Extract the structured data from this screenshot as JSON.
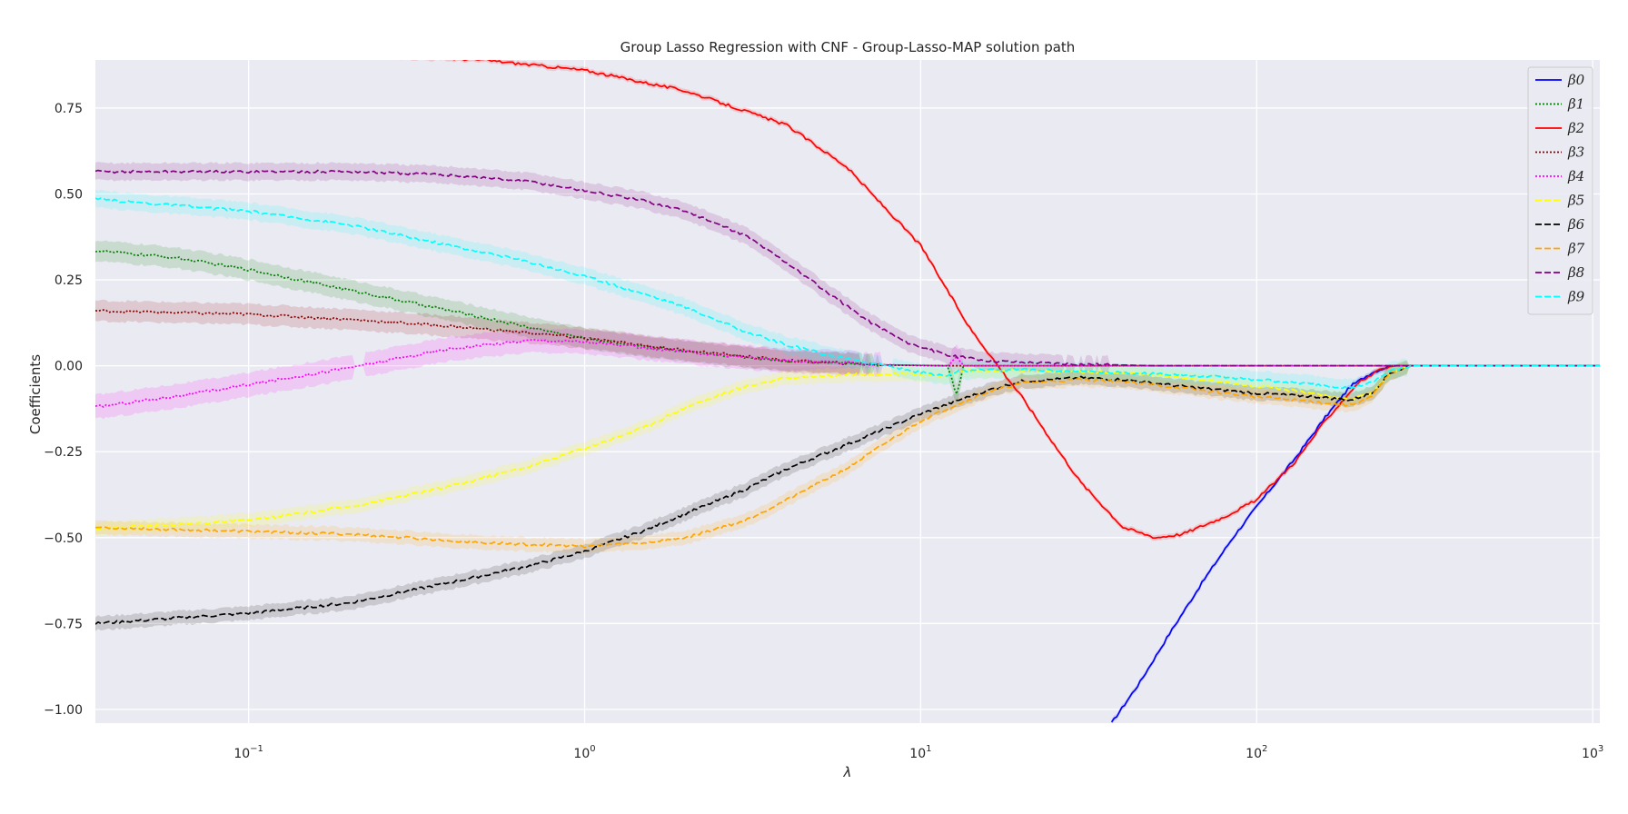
{
  "chart_data": {
    "type": "line",
    "title": "Group Lasso Regression with CNF - Group-Lasso-MAP solution path",
    "xlabel": "λ",
    "ylabel": "Coefficients",
    "xscale": "log",
    "xlim": [
      0.035,
      1050
    ],
    "ylim": [
      -1.04,
      0.89
    ],
    "grid": true,
    "legend_position": "top-right",
    "x_ticks": [
      {
        "value": 0.1,
        "base": "10",
        "exp": "−1"
      },
      {
        "value": 1,
        "base": "10",
        "exp": "0"
      },
      {
        "value": 10,
        "base": "10",
        "exp": "1"
      },
      {
        "value": 100,
        "base": "10",
        "exp": "2"
      },
      {
        "value": 1000,
        "base": "10",
        "exp": "3"
      }
    ],
    "y_ticks": [
      {
        "value": 0.75,
        "label": "0.75"
      },
      {
        "value": 0.5,
        "label": "0.50"
      },
      {
        "value": 0.25,
        "label": "0.25"
      },
      {
        "value": 0.0,
        "label": "0.00"
      },
      {
        "value": -0.25,
        "label": "−0.25"
      },
      {
        "value": -0.5,
        "label": "−0.50"
      },
      {
        "value": -0.75,
        "label": "−0.75"
      },
      {
        "value": -1.0,
        "label": "−1.00"
      }
    ],
    "series": [
      {
        "name": "β0",
        "color": "#0000ff",
        "dash": "solid",
        "band": 0.008,
        "points": [
          [
            37,
            -1.04
          ],
          [
            45,
            -0.92
          ],
          [
            55,
            -0.78
          ],
          [
            70,
            -0.62
          ],
          [
            85,
            -0.5
          ],
          [
            100,
            -0.41
          ],
          [
            130,
            -0.27
          ],
          [
            160,
            -0.15
          ],
          [
            190,
            -0.06
          ],
          [
            220,
            -0.02
          ],
          [
            250,
            0
          ],
          [
            1050,
            0
          ]
        ]
      },
      {
        "name": "β1",
        "color": "#008000",
        "dash": "dotted",
        "band": 0.03,
        "points": [
          [
            0.035,
            0.335
          ],
          [
            0.06,
            0.315
          ],
          [
            0.1,
            0.28
          ],
          [
            0.2,
            0.22
          ],
          [
            0.4,
            0.16
          ],
          [
            0.7,
            0.11
          ],
          [
            1,
            0.08
          ],
          [
            2,
            0.04
          ],
          [
            4,
            0.015
          ],
          [
            8,
            0.002
          ],
          [
            12,
            0
          ],
          [
            12.8,
            -0.085
          ],
          [
            13.4,
            0
          ],
          [
            1050,
            0
          ]
        ]
      },
      {
        "name": "β2",
        "color": "#ff0000",
        "dash": "solid",
        "band": 0.008,
        "points": [
          [
            0.035,
            0.95
          ],
          [
            0.3,
            0.9
          ],
          [
            0.5,
            0.89
          ],
          [
            1,
            0.86
          ],
          [
            2,
            0.8
          ],
          [
            4,
            0.7
          ],
          [
            6,
            0.58
          ],
          [
            8,
            0.45
          ],
          [
            10,
            0.35
          ],
          [
            12,
            0.22
          ],
          [
            14,
            0.11
          ],
          [
            17,
            0
          ],
          [
            20,
            -0.09
          ],
          [
            25,
            -0.23
          ],
          [
            30,
            -0.34
          ],
          [
            40,
            -0.47
          ],
          [
            50,
            -0.5
          ],
          [
            60,
            -0.49
          ],
          [
            80,
            -0.44
          ],
          [
            100,
            -0.39
          ],
          [
            130,
            -0.28
          ],
          [
            160,
            -0.16
          ],
          [
            200,
            -0.05
          ],
          [
            240,
            -0.005
          ],
          [
            260,
            0
          ],
          [
            1050,
            0
          ]
        ]
      },
      {
        "name": "β3",
        "color": "#8b0000",
        "dash": "dotted",
        "band": 0.03,
        "points": [
          [
            0.035,
            0.16
          ],
          [
            0.1,
            0.15
          ],
          [
            0.2,
            0.135
          ],
          [
            0.4,
            0.115
          ],
          [
            0.7,
            0.095
          ],
          [
            1,
            0.08
          ],
          [
            2,
            0.045
          ],
          [
            4,
            0.015
          ],
          [
            8,
            0.002
          ],
          [
            12,
            0
          ],
          [
            1050,
            0
          ]
        ]
      },
      {
        "name": "β4",
        "color": "#ff00ff",
        "dash": "dotted",
        "band": 0.035,
        "points": [
          [
            0.035,
            -0.12
          ],
          [
            0.07,
            -0.08
          ],
          [
            0.1,
            -0.055
          ],
          [
            0.2,
            -0.005
          ],
          [
            0.4,
            0.05
          ],
          [
            0.7,
            0.075
          ],
          [
            1,
            0.07
          ],
          [
            2,
            0.04
          ],
          [
            4,
            0.015
          ],
          [
            8,
            0.003
          ],
          [
            12,
            0
          ],
          [
            12.8,
            0.025
          ],
          [
            13.4,
            0
          ],
          [
            1050,
            0
          ]
        ]
      },
      {
        "name": "β5",
        "color": "#ffff00",
        "dash": "dashed",
        "band": 0.02,
        "points": [
          [
            0.035,
            -0.475
          ],
          [
            0.1,
            -0.45
          ],
          [
            0.2,
            -0.41
          ],
          [
            0.4,
            -0.35
          ],
          [
            0.7,
            -0.29
          ],
          [
            1,
            -0.24
          ],
          [
            1.5,
            -0.18
          ],
          [
            2,
            -0.12
          ],
          [
            3,
            -0.06
          ],
          [
            4,
            -0.035
          ],
          [
            6,
            -0.025
          ],
          [
            10,
            -0.025
          ],
          [
            12,
            -0.03
          ],
          [
            13,
            -0.015
          ],
          [
            20,
            -0.015
          ],
          [
            40,
            -0.02
          ],
          [
            70,
            -0.04
          ],
          [
            100,
            -0.06
          ],
          [
            150,
            -0.08
          ],
          [
            190,
            -0.1
          ],
          [
            220,
            -0.08
          ],
          [
            250,
            -0.02
          ],
          [
            290,
            0
          ],
          [
            1050,
            0
          ]
        ]
      },
      {
        "name": "β6",
        "color": "#000000",
        "dash": "dashed",
        "band": 0.02,
        "points": [
          [
            0.035,
            -0.75
          ],
          [
            0.1,
            -0.72
          ],
          [
            0.2,
            -0.69
          ],
          [
            0.4,
            -0.63
          ],
          [
            0.7,
            -0.58
          ],
          [
            1,
            -0.54
          ],
          [
            1.5,
            -0.48
          ],
          [
            2,
            -0.43
          ],
          [
            3,
            -0.36
          ],
          [
            4,
            -0.3
          ],
          [
            6,
            -0.23
          ],
          [
            8,
            -0.18
          ],
          [
            10,
            -0.14
          ],
          [
            13,
            -0.1
          ],
          [
            16,
            -0.07
          ],
          [
            20,
            -0.045
          ],
          [
            30,
            -0.035
          ],
          [
            40,
            -0.04
          ],
          [
            60,
            -0.06
          ],
          [
            100,
            -0.08
          ],
          [
            150,
            -0.09
          ],
          [
            190,
            -0.1
          ],
          [
            220,
            -0.08
          ],
          [
            250,
            -0.02
          ],
          [
            290,
            0
          ],
          [
            1050,
            0
          ]
        ]
      },
      {
        "name": "β7",
        "color": "#ffa500",
        "dash": "dashed",
        "band": 0.02,
        "points": [
          [
            0.035,
            -0.47
          ],
          [
            0.2,
            -0.49
          ],
          [
            0.5,
            -0.515
          ],
          [
            1,
            -0.525
          ],
          [
            1.5,
            -0.515
          ],
          [
            2,
            -0.5
          ],
          [
            3,
            -0.45
          ],
          [
            4,
            -0.39
          ],
          [
            6,
            -0.3
          ],
          [
            8,
            -0.22
          ],
          [
            10,
            -0.16
          ],
          [
            13,
            -0.11
          ],
          [
            16,
            -0.075
          ],
          [
            20,
            -0.05
          ],
          [
            30,
            -0.04
          ],
          [
            40,
            -0.045
          ],
          [
            60,
            -0.065
          ],
          [
            100,
            -0.09
          ],
          [
            150,
            -0.105
          ],
          [
            190,
            -0.115
          ],
          [
            220,
            -0.09
          ],
          [
            250,
            -0.02
          ],
          [
            290,
            0
          ],
          [
            1050,
            0
          ]
        ]
      },
      {
        "name": "β8",
        "color": "#800080",
        "dash": "dashed",
        "band": 0.025,
        "points": [
          [
            0.035,
            0.565
          ],
          [
            0.1,
            0.565
          ],
          [
            0.2,
            0.565
          ],
          [
            0.4,
            0.555
          ],
          [
            0.7,
            0.535
          ],
          [
            1,
            0.51
          ],
          [
            1.5,
            0.48
          ],
          [
            2,
            0.45
          ],
          [
            3,
            0.38
          ],
          [
            4,
            0.3
          ],
          [
            5,
            0.23
          ],
          [
            7,
            0.13
          ],
          [
            9,
            0.07
          ],
          [
            12,
            0.03
          ],
          [
            16,
            0.015
          ],
          [
            20,
            0.01
          ],
          [
            30,
            0.005
          ],
          [
            50,
            0
          ],
          [
            1050,
            0
          ]
        ]
      },
      {
        "name": "β9",
        "color": "#00ffff",
        "dash": "dashed",
        "band": 0.025,
        "points": [
          [
            0.035,
            0.485
          ],
          [
            0.1,
            0.45
          ],
          [
            0.2,
            0.41
          ],
          [
            0.4,
            0.35
          ],
          [
            0.7,
            0.3
          ],
          [
            1,
            0.26
          ],
          [
            1.5,
            0.21
          ],
          [
            2,
            0.17
          ],
          [
            3,
            0.1
          ],
          [
            4,
            0.06
          ],
          [
            6,
            0.02
          ],
          [
            8,
            0
          ],
          [
            10,
            -0.02
          ],
          [
            12,
            -0.03
          ],
          [
            13,
            -0.015
          ],
          [
            20,
            -0.01
          ],
          [
            40,
            -0.02
          ],
          [
            70,
            -0.03
          ],
          [
            100,
            -0.04
          ],
          [
            150,
            -0.055
          ],
          [
            190,
            -0.065
          ],
          [
            220,
            -0.05
          ],
          [
            250,
            -0.015
          ],
          [
            290,
            0
          ],
          [
            1050,
            0
          ]
        ]
      }
    ]
  }
}
